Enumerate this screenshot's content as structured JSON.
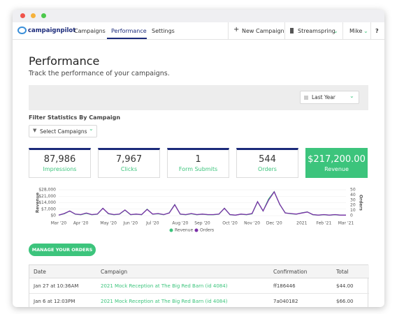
{
  "nav": {
    "logo": "campaignpilot",
    "links": [
      "Campaigns",
      "Performance",
      "Settings"
    ],
    "new_campaign": "New Campaign",
    "account": "Streamspring",
    "user": "Mike",
    "help": "?"
  },
  "header": {
    "title": "Performance",
    "subtitle": "Track the performance of your campaigns."
  },
  "date_filter": "Last Year",
  "filter": {
    "label": "Filter Statistics By Campaign",
    "select": "Select Campaigns"
  },
  "stats": [
    {
      "value": "87,986",
      "label": "Impressions"
    },
    {
      "value": "7,967",
      "label": "Clicks"
    },
    {
      "value": "1",
      "label": "Form Submits"
    },
    {
      "value": "544",
      "label": "Orders"
    },
    {
      "value": "$217,200.00",
      "label": "Revenue"
    }
  ],
  "chart_data": {
    "type": "line",
    "ylabel": "Revenue",
    "y2label": "Orders",
    "categories": [
      "Mar '20",
      null,
      null,
      null,
      "Apr '20",
      null,
      null,
      null,
      null,
      "May '20",
      null,
      null,
      null,
      "Jun '20",
      null,
      null,
      null,
      "Jul '20",
      null,
      null,
      null,
      null,
      "Aug '20",
      null,
      null,
      null,
      "Sep '20",
      null,
      null,
      null,
      null,
      "Oct '20",
      null,
      null,
      null,
      "Nov '20",
      null,
      null,
      null,
      "Dec '20",
      null,
      null,
      null,
      null,
      "2021",
      null,
      null,
      null,
      "Feb '21",
      null,
      null,
      null,
      "Mar '21"
    ],
    "ylim": [
      0,
      28000
    ],
    "yticks": [
      {
        "value": 0,
        "label": "$0"
      },
      {
        "value": 7000,
        "label": "$7,000"
      },
      {
        "value": 14000,
        "label": "$14,000"
      },
      {
        "value": 21000,
        "label": "$21,000"
      },
      {
        "value": 28000,
        "label": "$28,000"
      }
    ],
    "y2lim": [
      0,
      50
    ],
    "y2ticks": [
      0,
      10,
      20,
      30,
      40,
      50
    ],
    "series": [
      {
        "name": "Revenue",
        "color": "#3cc47c",
        "values": [
          500,
          2000,
          5000,
          1500,
          1000,
          2500,
          1000,
          1500,
          8000,
          2000,
          1000,
          1500,
          6000,
          1000,
          1500,
          1000,
          7000,
          1500,
          2000,
          1000,
          3000,
          12000,
          1500,
          1000,
          2000,
          1000,
          1500,
          1000,
          1000,
          1500,
          8000,
          1000,
          500,
          1500,
          1000,
          2000,
          15000,
          5000,
          18000,
          26000,
          12000,
          3000,
          2000,
          1500,
          3000,
          4000,
          1000,
          500,
          1000,
          500,
          1000,
          500,
          500
        ]
      },
      {
        "name": "Orders",
        "color": "#7b2fa8",
        "axis": "y2",
        "values": [
          1,
          4,
          9,
          3,
          2,
          5,
          2,
          3,
          14,
          4,
          2,
          3,
          11,
          2,
          3,
          2,
          12,
          3,
          4,
          2,
          5,
          21,
          3,
          2,
          4,
          2,
          3,
          2,
          2,
          3,
          14,
          2,
          1,
          3,
          2,
          4,
          27,
          9,
          30,
          46,
          22,
          5,
          4,
          3,
          5,
          7,
          2,
          1,
          2,
          1,
          2,
          1,
          1
        ]
      }
    ]
  },
  "button": "MANAGE YOUR ORDERS",
  "table": {
    "columns": [
      "Date",
      "Campaign",
      "Confirmation",
      "Total"
    ],
    "rows": [
      [
        "Jan 27 at 10:36AM",
        "2021 Mock Reception at The Big Red Barn (id 4084)",
        "ff186446",
        "$44.00"
      ],
      [
        "Jan 6 at 12:03PM",
        "2021 Mock Reception at The Big Red Barn (id 4084)",
        "7a040182",
        "$66.00"
      ]
    ]
  }
}
